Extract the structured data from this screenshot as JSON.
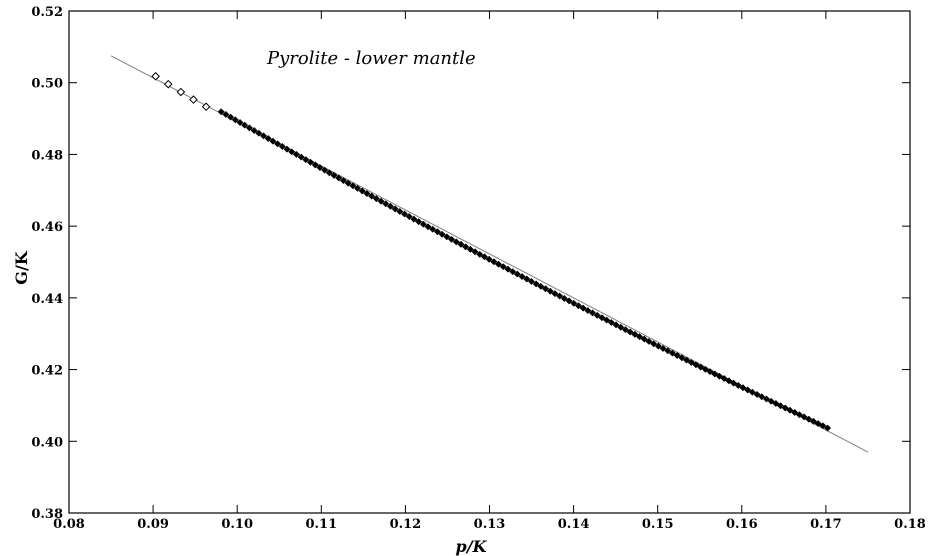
{
  "chart_data": {
    "type": "scatter",
    "title": "",
    "annotation": "Pyrolite - lower mantle",
    "xlabel": "p/K",
    "ylabel": "G/K",
    "xlim": [
      0.08,
      0.18
    ],
    "ylim": [
      0.38,
      0.52
    ],
    "x_ticks": [
      "0.08",
      "0.09",
      "0.10",
      "0.11",
      "0.12",
      "0.13",
      "0.14",
      "0.15",
      "0.16",
      "0.17",
      "0.18"
    ],
    "y_ticks": [
      "0.38",
      "0.40",
      "0.42",
      "0.44",
      "0.46",
      "0.48",
      "0.50",
      "0.52"
    ],
    "grid": false,
    "series": [
      {
        "marker": "open-diamond",
        "color": "#000000",
        "x": [
          0.0903,
          0.0918,
          0.0933,
          0.0948,
          0.0963
        ],
        "y": [
          0.5018,
          0.4996,
          0.4974,
          0.4953,
          0.4933
        ]
      },
      {
        "marker": "filled-diamond",
        "color": "#000000",
        "x_start": 0.0981,
        "x_end": 0.1702,
        "count": 130,
        "y_start": 0.4919,
        "y_end": 0.4037
      },
      {
        "marker": "line",
        "color": "#808080",
        "x": [
          0.085,
          0.175
        ],
        "y": [
          0.5075,
          0.397
        ]
      }
    ]
  }
}
